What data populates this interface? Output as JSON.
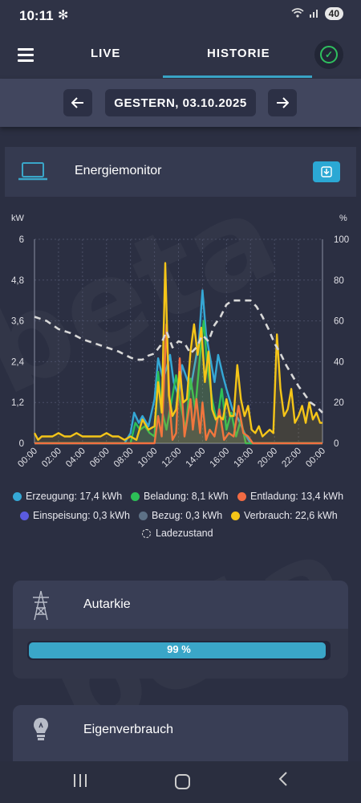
{
  "status": {
    "time": "10:11",
    "battery": "40"
  },
  "tabs": {
    "live": "LIVE",
    "history": "HISTORIE"
  },
  "date_label": "GESTERN, 03.10.2025",
  "card": {
    "title": "Energiemonitor"
  },
  "chart_data": {
    "type": "line",
    "ylabel_left": "kW",
    "ylabel_right": "%",
    "ylim_left": [
      0,
      6
    ],
    "ylim_right": [
      0,
      100
    ],
    "yticks_left": [
      "0",
      "1,2",
      "2,4",
      "3,6",
      "4,8",
      "6"
    ],
    "yticks_right": [
      "0",
      "20",
      "40",
      "60",
      "80",
      "100"
    ],
    "xticks": [
      "00:00",
      "02:00",
      "04:00",
      "06:00",
      "08:00",
      "10:00",
      "12:00",
      "14:00",
      "16:00",
      "18:00",
      "20:00",
      "22:00",
      "00:00"
    ],
    "grid": true,
    "legend": [
      {
        "name": "Erzeugung: 17,4 kWh",
        "color": "#35a8d6"
      },
      {
        "name": "Beladung: 8,1 kWh",
        "color": "#2dbf57"
      },
      {
        "name": "Entladung: 13,4 kWh",
        "color": "#f26b43"
      },
      {
        "name": "Einspeisung: 0,3 kWh",
        "color": "#5b5be0"
      },
      {
        "name": "Bezug: 0,3 kWh",
        "color": "#5d7186"
      },
      {
        "name": "Verbrauch: 22,6 kWh",
        "color": "#f5c518"
      },
      {
        "name": "Ladezustand",
        "color": "#d8d8d8"
      }
    ],
    "series": [
      {
        "name": "Erzeugung",
        "color": "#35a8d6",
        "x": [
          0,
          7.5,
          8,
          8.3,
          8.7,
          9,
          9.5,
          10,
          10.3,
          10.7,
          11,
          11.3,
          11.6,
          12,
          12.3,
          12.6,
          13,
          13.3,
          13.7,
          14,
          14.3,
          14.7,
          15,
          15.3,
          15.7,
          16,
          16.5,
          17,
          17.5,
          18,
          24
        ],
        "values": [
          0,
          0,
          0.3,
          0.9,
          0.6,
          0.8,
          0.5,
          1.3,
          2.5,
          1.9,
          2.2,
          2.6,
          1.8,
          1.4,
          2.3,
          2.0,
          1.6,
          2.2,
          3.0,
          4.5,
          3.2,
          2.4,
          1.8,
          2.6,
          2.0,
          1.6,
          1.0,
          0.7,
          0.3,
          0,
          0
        ]
      },
      {
        "name": "Beladung",
        "color": "#2dbf57",
        "x": [
          0,
          8,
          8.4,
          8.8,
          9.2,
          9.6,
          10,
          10.3,
          10.6,
          11,
          11.4,
          11.8,
          12.2,
          12.6,
          13,
          13.4,
          13.8,
          14.1,
          14.4,
          14.8,
          15.2,
          15.6,
          16,
          16.4,
          16.8,
          17.2,
          17.6,
          18,
          24
        ],
        "values": [
          0,
          0,
          0.6,
          0.4,
          0.5,
          0.3,
          0.2,
          2.1,
          1.0,
          0.4,
          1.2,
          2.0,
          1.1,
          0.4,
          1.9,
          1.0,
          2.6,
          3.6,
          2.3,
          1.3,
          0.6,
          1.6,
          0.4,
          0.9,
          0.2,
          0.7,
          0,
          0,
          0
        ]
      },
      {
        "name": "Entladung",
        "color": "#f26b43",
        "x": [
          0,
          9.5,
          10,
          10.3,
          10.6,
          11,
          11.3,
          11.5,
          11.8,
          12.1,
          12.5,
          13,
          13.2,
          13.5,
          13.8,
          14,
          14.3,
          14.6,
          15,
          15.4,
          15.8,
          16.2,
          16.6,
          17,
          17.4,
          17.8,
          18.2,
          24
        ],
        "values": [
          0,
          0,
          0,
          0.8,
          0.2,
          3.5,
          1.0,
          0.1,
          0.3,
          2.5,
          0.2,
          1.3,
          0.4,
          1.3,
          0.3,
          1.2,
          0.1,
          0.4,
          0.2,
          1.0,
          0.1,
          0.3,
          0.2,
          1.1,
          0.3,
          0.2,
          0,
          0
        ]
      },
      {
        "name": "Verbrauch",
        "color": "#f5c518",
        "x": [
          0,
          0.3,
          0.6,
          1,
          1.5,
          2,
          2.5,
          3,
          3.5,
          4,
          4.5,
          5,
          5.5,
          6,
          6.5,
          7,
          7.5,
          8,
          8.5,
          9,
          9.5,
          10,
          10.3,
          10.6,
          10.9,
          11.2,
          11.5,
          11.8,
          12.1,
          12.4,
          12.7,
          13,
          13.3,
          13.6,
          13.9,
          14.2,
          14.5,
          14.8,
          15.1,
          15.4,
          15.7,
          16,
          16.3,
          16.6,
          16.9,
          17.2,
          17.5,
          17.8,
          18.1,
          18.4,
          18.7,
          19,
          19.3,
          19.6,
          19.9,
          20.2,
          20.5,
          20.8,
          21.1,
          21.4,
          21.7,
          22,
          22.3,
          22.6,
          22.9,
          23.2,
          23.5,
          23.8,
          24
        ],
        "values": [
          0.3,
          0.1,
          0.2,
          0.2,
          0.2,
          0.3,
          0.2,
          0.2,
          0.3,
          0.2,
          0.2,
          0.2,
          0.2,
          0.3,
          0.2,
          0.2,
          0.1,
          0.2,
          0.1,
          0.7,
          0.4,
          0.5,
          1.8,
          0.9,
          5.3,
          1.4,
          0.8,
          1.0,
          2.1,
          1.2,
          1.3,
          2.7,
          3.5,
          2.6,
          3.4,
          1.8,
          2.7,
          1.0,
          0.7,
          0.8,
          0.7,
          1.3,
          0.8,
          0.8,
          2.3,
          1.3,
          0.8,
          1.1,
          0.4,
          0.3,
          0.5,
          0.2,
          0.3,
          0.4,
          0.3,
          3.2,
          1.6,
          0.8,
          1.0,
          1.6,
          0.6,
          0.8,
          1.1,
          0.6,
          1.2,
          0.7,
          0.9,
          0.6,
          0.6
        ]
      },
      {
        "name": "Ladezustand",
        "color": "#d8d8d8",
        "axis": "right",
        "x": [
          0,
          1,
          2,
          3,
          4,
          5,
          6,
          7,
          8,
          8.5,
          9,
          9.5,
          10,
          10.5,
          11,
          11.5,
          12,
          12.5,
          13,
          13.5,
          14,
          14.5,
          15,
          15.5,
          16,
          16.5,
          17,
          17.5,
          18,
          18.5,
          19,
          19.5,
          20,
          20.5,
          21,
          21.5,
          22,
          22.5,
          23,
          23.5,
          24
        ],
        "values": [
          62,
          60,
          56,
          54,
          51,
          49,
          47,
          45,
          42,
          41,
          41,
          43,
          44,
          48,
          55,
          47,
          50,
          49,
          44,
          47,
          53,
          50,
          58,
          62,
          68,
          70,
          70,
          70,
          70,
          67,
          62,
          56,
          49,
          44,
          38,
          33,
          28,
          24,
          20,
          18,
          15
        ]
      }
    ]
  },
  "autarkie": {
    "title": "Autarkie",
    "value": 99,
    "value_label": "99 %"
  },
  "eigen": {
    "title": "Eigenverbrauch"
  },
  "watermark_text": "beta"
}
